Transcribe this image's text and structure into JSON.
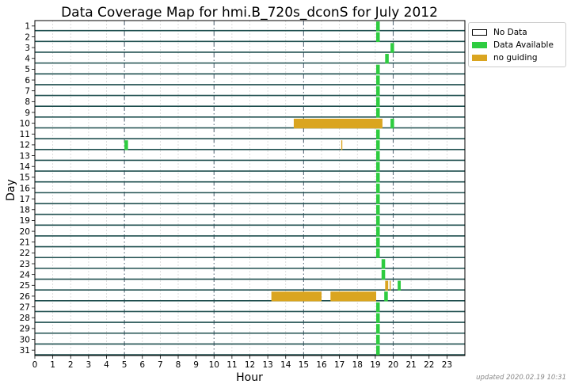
{
  "chart_data": {
    "type": "bar",
    "title": "Data Coverage Map for hmi.B_720s_dconS for July 2012",
    "xlabel": "Hour",
    "ylabel": "Day",
    "xlim": [
      0,
      24
    ],
    "x_ticks": [
      0,
      1,
      2,
      3,
      4,
      5,
      6,
      7,
      8,
      9,
      10,
      11,
      12,
      13,
      14,
      15,
      16,
      17,
      18,
      19,
      20,
      21,
      22,
      23
    ],
    "days": [
      1,
      2,
      3,
      4,
      5,
      6,
      7,
      8,
      9,
      10,
      11,
      12,
      13,
      14,
      15,
      16,
      17,
      18,
      19,
      20,
      21,
      22,
      23,
      24,
      25,
      26,
      27,
      28,
      29,
      30,
      31
    ],
    "highlight_hours": [
      5,
      10,
      15,
      20
    ],
    "legend": {
      "position": "upper-right-outside",
      "items": [
        {
          "label": "No Data",
          "color": "#ffffff",
          "border": "#000000"
        },
        {
          "label": "Data Available",
          "color": "#2ecc40"
        },
        {
          "label": "no guiding",
          "color": "#daa520"
        }
      ]
    },
    "colors": {
      "data": "#2ecc40",
      "noguide": "#daa520",
      "row_line": "#1f4f4f"
    },
    "segments": [
      {
        "day": 1,
        "start": 19.05,
        "end": 19.25,
        "status": "data"
      },
      {
        "day": 2,
        "start": 19.05,
        "end": 19.25,
        "status": "data"
      },
      {
        "day": 3,
        "start": 19.85,
        "end": 20.05,
        "status": "data"
      },
      {
        "day": 4,
        "start": 19.55,
        "end": 19.75,
        "status": "data"
      },
      {
        "day": 5,
        "start": 19.05,
        "end": 19.25,
        "status": "data"
      },
      {
        "day": 6,
        "start": 19.05,
        "end": 19.25,
        "status": "data"
      },
      {
        "day": 7,
        "start": 19.05,
        "end": 19.25,
        "status": "data"
      },
      {
        "day": 8,
        "start": 19.05,
        "end": 19.25,
        "status": "data"
      },
      {
        "day": 9,
        "start": 19.05,
        "end": 19.25,
        "status": "data"
      },
      {
        "day": 10,
        "start": 14.45,
        "end": 19.4,
        "status": "noguide"
      },
      {
        "day": 10,
        "start": 19.85,
        "end": 20.05,
        "status": "data"
      },
      {
        "day": 11,
        "start": 19.05,
        "end": 19.25,
        "status": "data"
      },
      {
        "day": 12,
        "start": 5.0,
        "end": 5.2,
        "status": "data"
      },
      {
        "day": 12,
        "start": 17.1,
        "end": 17.16,
        "status": "noguide"
      },
      {
        "day": 12,
        "start": 19.05,
        "end": 19.25,
        "status": "data"
      },
      {
        "day": 13,
        "start": 19.05,
        "end": 19.25,
        "status": "data"
      },
      {
        "day": 14,
        "start": 19.05,
        "end": 19.25,
        "status": "data"
      },
      {
        "day": 15,
        "start": 19.05,
        "end": 19.25,
        "status": "data"
      },
      {
        "day": 16,
        "start": 19.05,
        "end": 19.25,
        "status": "data"
      },
      {
        "day": 17,
        "start": 19.05,
        "end": 19.25,
        "status": "data"
      },
      {
        "day": 18,
        "start": 19.05,
        "end": 19.25,
        "status": "data"
      },
      {
        "day": 19,
        "start": 19.05,
        "end": 19.25,
        "status": "data"
      },
      {
        "day": 20,
        "start": 19.05,
        "end": 19.25,
        "status": "data"
      },
      {
        "day": 21,
        "start": 19.05,
        "end": 19.25,
        "status": "data"
      },
      {
        "day": 22,
        "start": 19.05,
        "end": 19.25,
        "status": "data"
      },
      {
        "day": 23,
        "start": 19.35,
        "end": 19.55,
        "status": "data"
      },
      {
        "day": 24,
        "start": 19.35,
        "end": 19.55,
        "status": "data"
      },
      {
        "day": 25,
        "start": 19.55,
        "end": 19.72,
        "status": "noguide"
      },
      {
        "day": 25,
        "start": 19.8,
        "end": 19.86,
        "status": "noguide"
      },
      {
        "day": 25,
        "start": 20.25,
        "end": 20.42,
        "status": "data"
      },
      {
        "day": 26,
        "start": 13.2,
        "end": 16.0,
        "status": "noguide"
      },
      {
        "day": 26,
        "start": 16.5,
        "end": 19.05,
        "status": "noguide"
      },
      {
        "day": 26,
        "start": 19.5,
        "end": 19.7,
        "status": "data"
      },
      {
        "day": 27,
        "start": 19.05,
        "end": 19.25,
        "status": "data"
      },
      {
        "day": 28,
        "start": 19.05,
        "end": 19.25,
        "status": "data"
      },
      {
        "day": 29,
        "start": 19.05,
        "end": 19.25,
        "status": "data"
      },
      {
        "day": 30,
        "start": 19.05,
        "end": 19.25,
        "status": "data"
      },
      {
        "day": 31,
        "start": 19.05,
        "end": 19.25,
        "status": "data"
      }
    ]
  },
  "footer": {
    "updated": "updated 2020.02.19 10:31"
  }
}
